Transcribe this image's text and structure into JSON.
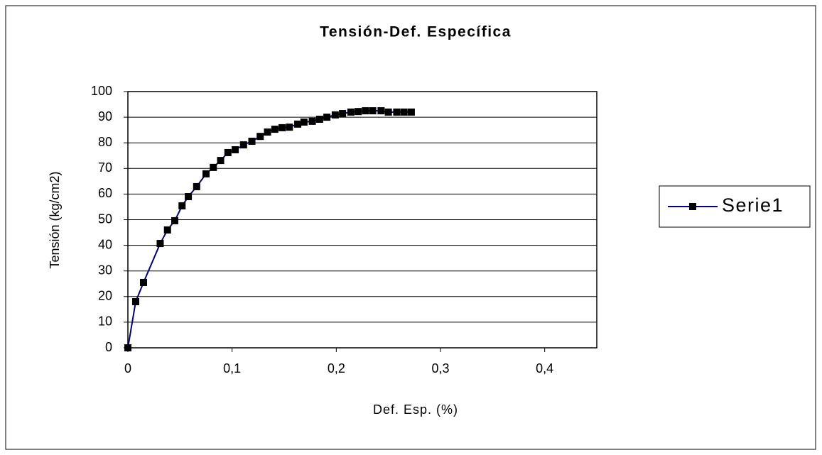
{
  "chart_data": {
    "type": "line",
    "title": "Tensión-Def. Específica",
    "xlabel": "Def. Esp. (%)",
    "ylabel": "Tensión (kg/cm2)",
    "xlim": [
      0,
      0.45
    ],
    "ylim": [
      0,
      100
    ],
    "xticks": [
      0,
      {
        "value": 0.1,
        "label": "0,1"
      },
      {
        "value": 0.2,
        "label": "0,2"
      },
      {
        "value": 0.3,
        "label": "0,3"
      },
      {
        "value": 0.4,
        "label": "0,4"
      }
    ],
    "yticks": [
      0,
      10,
      20,
      30,
      40,
      50,
      60,
      70,
      80,
      90,
      100
    ],
    "grid": true,
    "legend": "right",
    "x": [
      0,
      0.0075,
      0.015,
      0.031,
      0.038,
      0.045,
      0.052,
      0.058,
      0.066,
      0.075,
      0.082,
      0.089,
      0.096,
      0.103,
      0.111,
      0.119,
      0.127,
      0.134,
      0.141,
      0.148,
      0.155,
      0.163,
      0.169,
      0.177,
      0.184,
      0.191,
      0.199,
      0.206,
      0.214,
      0.221,
      0.228,
      0.235,
      0.243,
      0.25,
      0.258,
      0.265,
      0.272
    ],
    "series": [
      {
        "name": "Serie1",
        "color": "#000080",
        "marker_color": "#000000",
        "values": [
          0,
          18,
          25.5,
          40.7,
          46,
          49.6,
          55.4,
          59,
          62.9,
          67.9,
          70.4,
          73.1,
          76.2,
          77.3,
          79.2,
          80.6,
          82.5,
          84.2,
          85.3,
          85.9,
          86.1,
          87.3,
          88.1,
          88.4,
          89.2,
          90,
          90.9,
          91.4,
          92,
          92.2,
          92.5,
          92.5,
          92.5,
          92,
          92,
          92,
          92
        ]
      }
    ]
  }
}
